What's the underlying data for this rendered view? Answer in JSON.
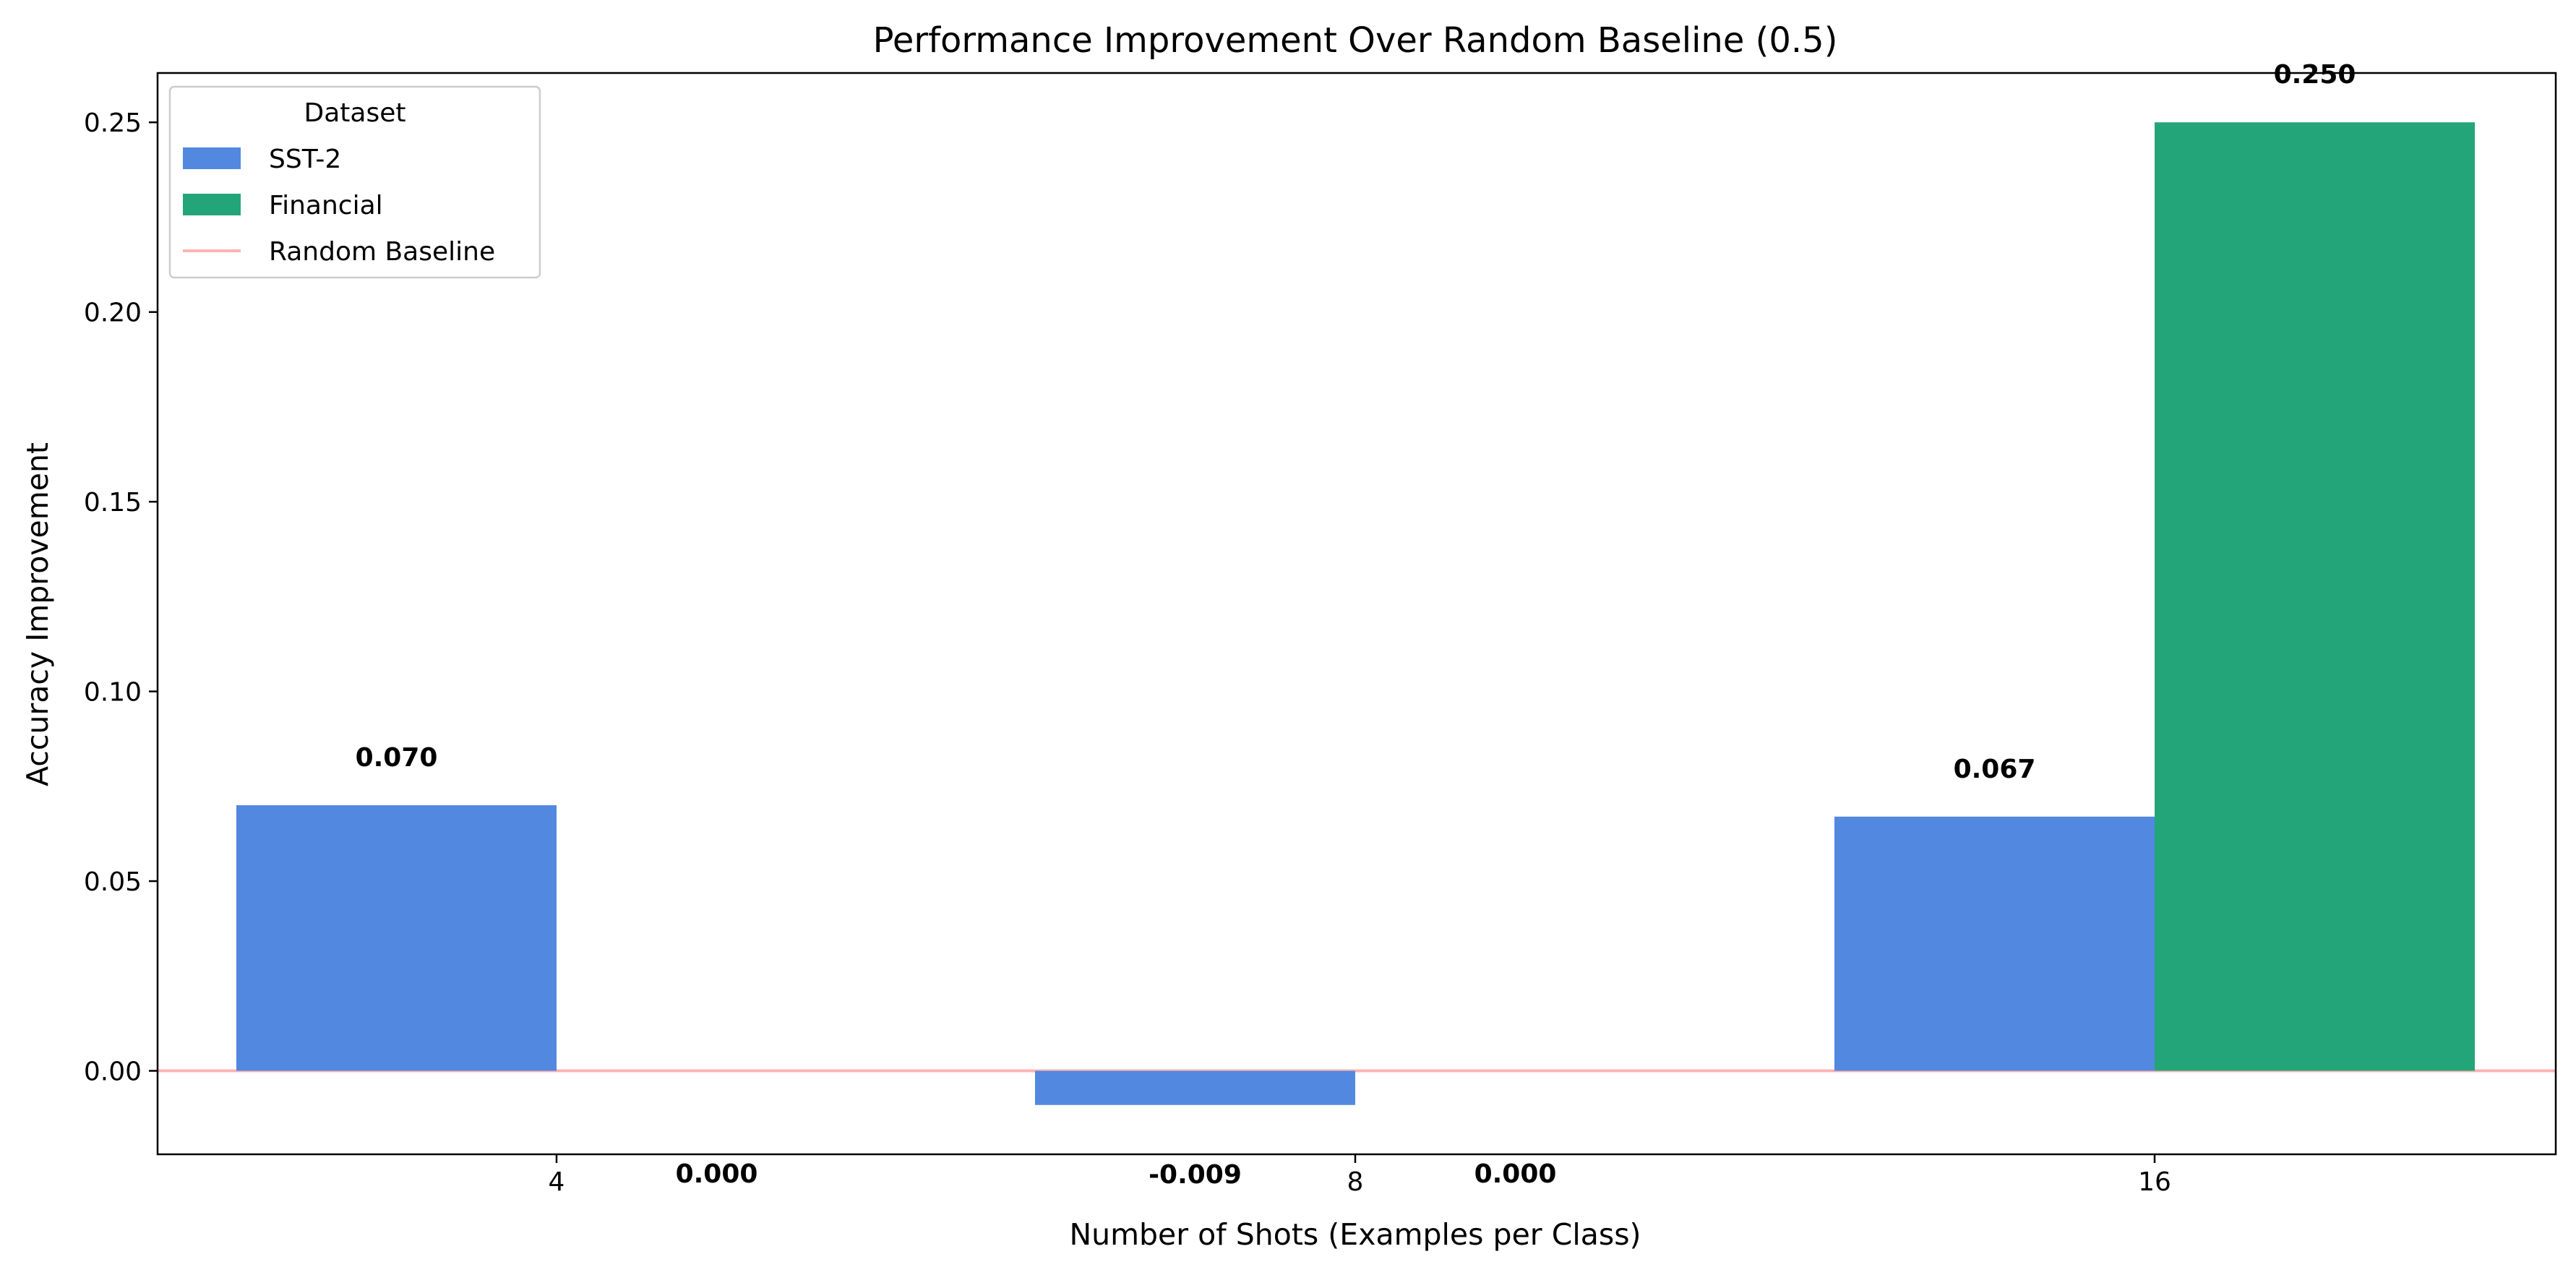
{
  "chart_data": {
    "type": "bar",
    "title": "Performance Improvement Over Random Baseline (0.5)",
    "xlabel": "Number of Shots (Examples per Class)",
    "ylabel": "Accuracy Improvement",
    "categories": [
      "4",
      "8",
      "16"
    ],
    "series": [
      {
        "name": "SST-2",
        "color": "#5288DF",
        "values": [
          0.07,
          -0.009,
          0.067
        ],
        "labels": [
          "0.070",
          "-0.009",
          "0.067"
        ]
      },
      {
        "name": "Financial",
        "color": "#23A579",
        "values": [
          0.0,
          0.0,
          0.25
        ],
        "labels": [
          "0.000",
          "0.000",
          "0.250"
        ]
      }
    ],
    "baseline": {
      "name": "Random Baseline",
      "value": 0.0,
      "color": "#FFB3B3"
    },
    "yticks": [
      "0.00",
      "0.05",
      "0.10",
      "0.15",
      "0.20",
      "0.25"
    ],
    "ylim": [
      -0.022,
      0.263
    ],
    "legend": {
      "title": "Dataset",
      "position": "top-left"
    },
    "grid": false
  }
}
